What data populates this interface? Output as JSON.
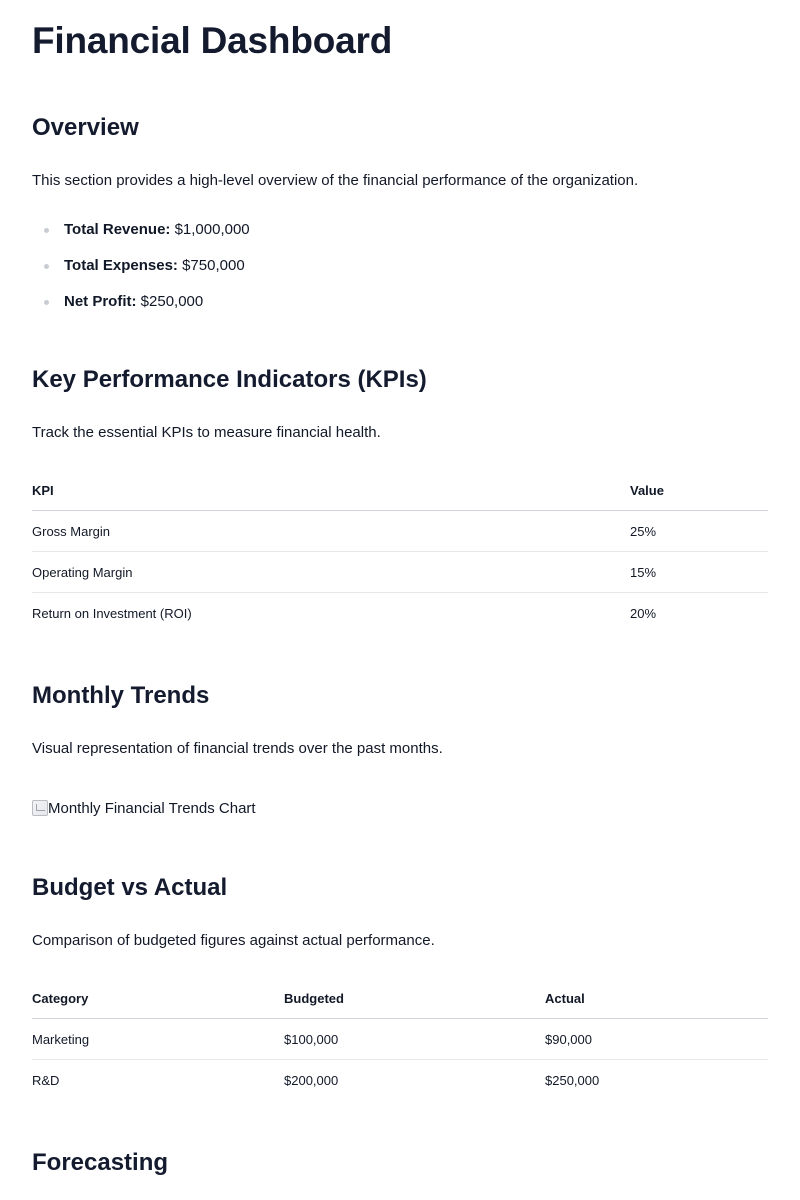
{
  "page_title": "Financial Dashboard",
  "overview": {
    "heading": "Overview",
    "description": "This section provides a high-level overview of the financial performance of the organization.",
    "items": [
      {
        "label": "Total Revenue:",
        "value": "$1,000,000"
      },
      {
        "label": "Total Expenses:",
        "value": "$750,000"
      },
      {
        "label": "Net Profit:",
        "value": "$250,000"
      }
    ]
  },
  "kpis": {
    "heading": "Key Performance Indicators (KPIs)",
    "description": "Track the essential KPIs to measure financial health.",
    "columns": [
      "KPI",
      "Value"
    ],
    "rows": [
      [
        "Gross Margin",
        "25%"
      ],
      [
        "Operating Margin",
        "15%"
      ],
      [
        "Return on Investment (ROI)",
        "20%"
      ]
    ]
  },
  "trends": {
    "heading": "Monthly Trends",
    "description": "Visual representation of financial trends over the past months.",
    "image_alt": "Monthly Financial Trends Chart",
    "image_icon": "broken-image-icon"
  },
  "budget": {
    "heading": "Budget vs Actual",
    "description": "Comparison of budgeted figures against actual performance.",
    "columns": [
      "Category",
      "Budgeted",
      "Actual"
    ],
    "rows": [
      [
        "Marketing",
        "$100,000",
        "$90,000"
      ],
      [
        "R&D",
        "$200,000",
        "$250,000"
      ]
    ]
  },
  "forecasting": {
    "heading": "Forecasting"
  }
}
